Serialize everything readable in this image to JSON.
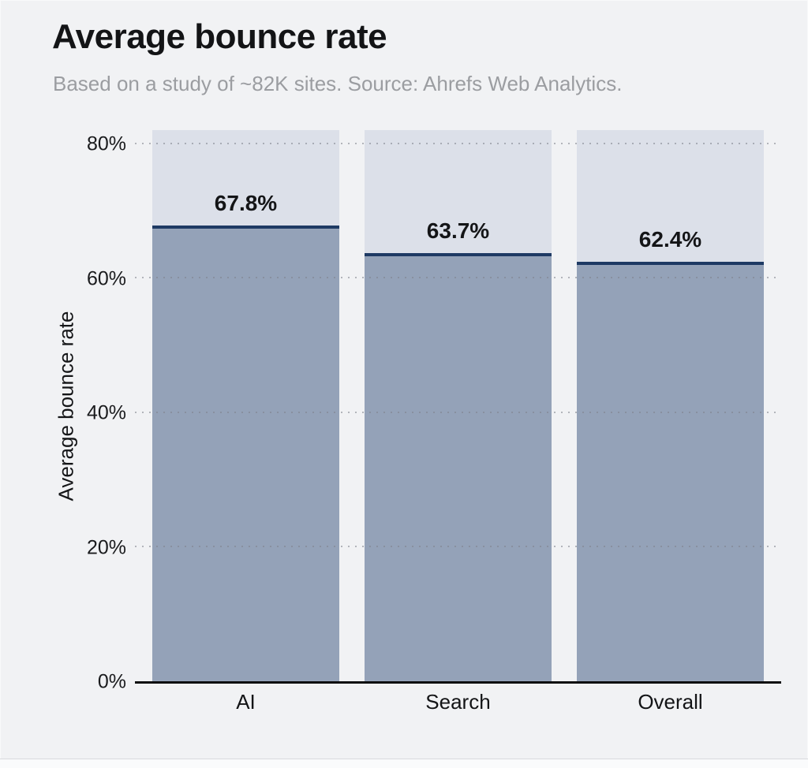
{
  "header": {
    "title": "Average bounce rate",
    "subtitle": "Based on a study of ~82K sites. Source: Ahrefs Web Analytics."
  },
  "chart_data": {
    "type": "bar",
    "title": "Average bounce rate",
    "subtitle": "Based on a study of ~82K sites. Source: Ahrefs Web Analytics.",
    "categories": [
      "AI",
      "Search",
      "Overall"
    ],
    "values": [
      67.8,
      63.7,
      62.4
    ],
    "value_labels": [
      "67.8%",
      "63.7%",
      "62.4%"
    ],
    "xlabel": "",
    "ylabel": "Average bounce rate",
    "ylim": [
      0,
      82
    ],
    "yticks": [
      0,
      20,
      40,
      60,
      80
    ],
    "ytick_labels": [
      "0%",
      "20%",
      "40%",
      "60%",
      "80%"
    ],
    "grid": "horizontal-dotted",
    "legend": "none",
    "colors": {
      "background": "#f1f2f4",
      "bar_track": "#dce0e9",
      "bar_fill": "#94a2b8",
      "bar_top_line": "#1e3a64",
      "gridline": "#8a8f98",
      "axis_line": "#0c0d0e",
      "title_text": "#131416",
      "subtitle_text": "#9b9da1",
      "label_text": "#141517"
    }
  }
}
